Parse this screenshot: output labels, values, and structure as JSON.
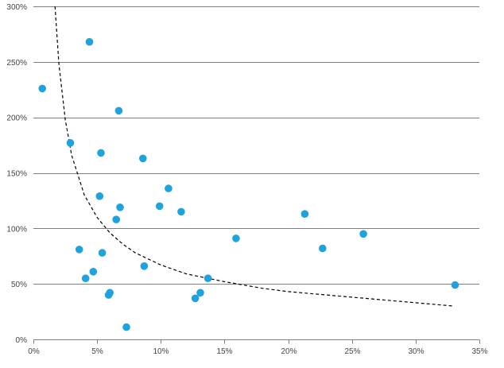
{
  "chart_data": {
    "type": "scatter",
    "title": "",
    "xlabel": "",
    "ylabel": "",
    "xlim": [
      0,
      0.35
    ],
    "ylim": [
      0,
      3.0
    ],
    "x_ticks": [
      0,
      0.05,
      0.1,
      0.15,
      0.2,
      0.25,
      0.3,
      0.35
    ],
    "x_tick_labels": [
      "0%",
      "5%",
      "10%",
      "15%",
      "20%",
      "25%",
      "30%",
      "35%"
    ],
    "y_ticks": [
      0,
      0.5,
      1.0,
      1.5,
      2.0,
      2.5,
      3.0
    ],
    "y_tick_labels": [
      "0%",
      "50%",
      "100%",
      "150%",
      "200%",
      "250%",
      "300%"
    ],
    "grid": "horizontal",
    "legend": "none",
    "colors": {
      "points": "#1fa3dc",
      "trendline": "#000000",
      "grid": "#7f7f7f",
      "axis": "#7f7f7f"
    },
    "series": [
      {
        "type": "scatter",
        "x": [
          0.007,
          0.044,
          0.029,
          0.067,
          0.053,
          0.086,
          0.052,
          0.068,
          0.065,
          0.106,
          0.099,
          0.116,
          0.036,
          0.054,
          0.047,
          0.041,
          0.087,
          0.06,
          0.059,
          0.073,
          0.159,
          0.137,
          0.131,
          0.127,
          0.213,
          0.227,
          0.259,
          0.331
        ],
        "y": [
          2.26,
          2.68,
          1.77,
          2.06,
          1.68,
          1.63,
          1.29,
          1.19,
          1.08,
          1.36,
          1.2,
          1.15,
          0.81,
          0.78,
          0.61,
          0.55,
          0.66,
          0.42,
          0.4,
          0.11,
          0.91,
          0.55,
          0.42,
          0.37,
          1.13,
          0.82,
          0.95,
          0.49
        ]
      },
      {
        "type": "trendline",
        "style": "dashed",
        "x": [
          0.017,
          0.02,
          0.025,
          0.03,
          0.04,
          0.05,
          0.06,
          0.07,
          0.08,
          0.1,
          0.12,
          0.15,
          0.18,
          0.2,
          0.25,
          0.3,
          0.33
        ],
        "y": [
          3.0,
          2.48,
          1.98,
          1.66,
          1.3,
          1.1,
          0.96,
          0.86,
          0.78,
          0.67,
          0.59,
          0.52,
          0.46,
          0.43,
          0.38,
          0.33,
          0.3
        ]
      }
    ]
  }
}
